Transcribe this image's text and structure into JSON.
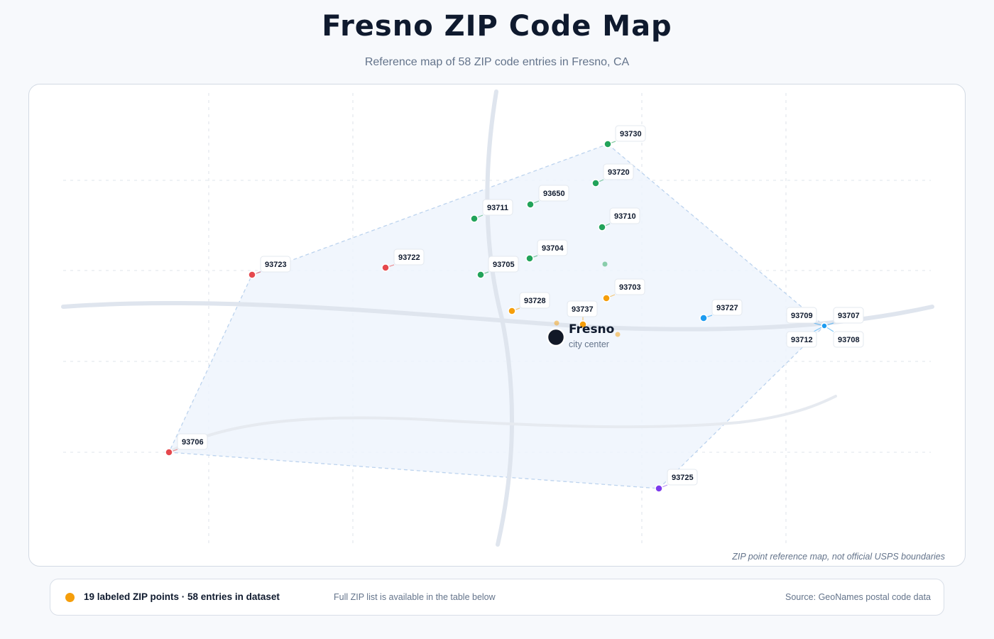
{
  "header": {
    "title": "Fresno ZIP Code Map",
    "subtitle": "Reference map of 58 ZIP code entries in Fresno, CA"
  },
  "map": {
    "note": "ZIP point reference map, not official USPS boundaries",
    "city": {
      "name": "Fresno",
      "sublabel": "city center"
    },
    "colors": {
      "north": "#22a35a",
      "west": "#e5484d",
      "central": "#f59e0b",
      "east": "#1d9bf0",
      "south": "#7c3aed",
      "coverage_fill": "#eef4fd",
      "coverage_stroke": "#bcd3ee",
      "road": "#dfe5ee",
      "grid": "#e5e9ef",
      "city": "#111827"
    },
    "zips": [
      {
        "zip": "93730",
        "group": "north"
      },
      {
        "zip": "93720",
        "group": "north"
      },
      {
        "zip": "93650",
        "group": "north"
      },
      {
        "zip": "93711",
        "group": "north"
      },
      {
        "zip": "93710",
        "group": "north"
      },
      {
        "zip": "93704",
        "group": "north"
      },
      {
        "zip": "93705",
        "group": "north"
      },
      {
        "zip": "93723",
        "group": "west"
      },
      {
        "zip": "93722",
        "group": "west"
      },
      {
        "zip": "93703",
        "group": "central"
      },
      {
        "zip": "93728",
        "group": "central"
      },
      {
        "zip": "93737",
        "group": "central"
      },
      {
        "zip": "93727",
        "group": "east"
      },
      {
        "zip": "93709",
        "group": "east"
      },
      {
        "zip": "93707",
        "group": "east"
      },
      {
        "zip": "93712",
        "group": "east"
      },
      {
        "zip": "93708",
        "group": "east"
      },
      {
        "zip": "93706",
        "group": "west"
      },
      {
        "zip": "93725",
        "group": "south"
      }
    ]
  },
  "legend": {
    "dot_color": "#f59e0b",
    "stat": "19 labeled ZIP points · 58 entries in dataset",
    "hint": "Full ZIP list is available in the table below",
    "source": "Source: GeoNames postal code data"
  }
}
